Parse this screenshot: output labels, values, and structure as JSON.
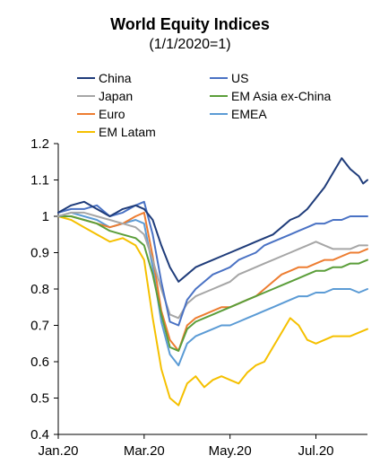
{
  "chart_data": {
    "type": "line",
    "title": "World Equity Indices",
    "subtitle": "(1/1/2020=1)",
    "xlabel": "",
    "ylabel": "",
    "x_tick_labels": [
      "Jan.20",
      "Mar.20",
      "May.20",
      "Jul.20"
    ],
    "x_tick_positions": [
      0,
      2,
      4,
      6
    ],
    "xlim": [
      0,
      7.2
    ],
    "ylim": [
      0.4,
      1.2
    ],
    "y_ticks": [
      0.4,
      0.5,
      0.6,
      0.7,
      0.8,
      0.9,
      1.0,
      1.1,
      1.2
    ],
    "y_tick_labels": [
      "0.4",
      "0.5",
      "0.6",
      "0.7",
      "0.8",
      "0.9",
      "1",
      "1.1",
      "1.2"
    ],
    "grid": false,
    "legend": "top-left, two columns",
    "series": [
      {
        "name": "China",
        "color": "#1f3c7a",
        "x": [
          0,
          0.3,
          0.6,
          0.9,
          1.2,
          1.5,
          1.8,
          2.0,
          2.2,
          2.4,
          2.6,
          2.8,
          3.0,
          3.2,
          3.4,
          3.6,
          3.8,
          4.0,
          4.2,
          4.4,
          4.6,
          4.8,
          5.0,
          5.2,
          5.4,
          5.6,
          5.8,
          6.0,
          6.2,
          6.4,
          6.6,
          6.8,
          7.0,
          7.1,
          7.2
        ],
        "y": [
          1.01,
          1.03,
          1.04,
          1.02,
          1.0,
          1.02,
          1.03,
          1.02,
          0.99,
          0.92,
          0.86,
          0.82,
          0.84,
          0.86,
          0.87,
          0.88,
          0.89,
          0.9,
          0.91,
          0.92,
          0.93,
          0.94,
          0.95,
          0.97,
          0.99,
          1.0,
          1.02,
          1.05,
          1.08,
          1.12,
          1.16,
          1.13,
          1.11,
          1.09,
          1.1
        ]
      },
      {
        "name": "US",
        "color": "#4a72c4",
        "x": [
          0,
          0.3,
          0.6,
          0.9,
          1.2,
          1.5,
          1.8,
          2.0,
          2.2,
          2.4,
          2.6,
          2.8,
          3.0,
          3.2,
          3.4,
          3.6,
          3.8,
          4.0,
          4.2,
          4.4,
          4.6,
          4.8,
          5.0,
          5.2,
          5.4,
          5.6,
          5.8,
          6.0,
          6.2,
          6.4,
          6.6,
          6.8,
          7.0,
          7.2
        ],
        "y": [
          1.01,
          1.02,
          1.02,
          1.03,
          1.0,
          1.01,
          1.03,
          1.04,
          0.95,
          0.82,
          0.71,
          0.7,
          0.77,
          0.8,
          0.82,
          0.84,
          0.85,
          0.86,
          0.88,
          0.89,
          0.9,
          0.92,
          0.93,
          0.94,
          0.95,
          0.96,
          0.97,
          0.98,
          0.98,
          0.99,
          0.99,
          1.0,
          1.0,
          1.0
        ]
      },
      {
        "name": "Japan",
        "color": "#a6a6a6",
        "x": [
          0,
          0.3,
          0.6,
          0.9,
          1.2,
          1.5,
          1.8,
          2.0,
          2.2,
          2.4,
          2.6,
          2.8,
          3.0,
          3.2,
          3.4,
          3.6,
          3.8,
          4.0,
          4.2,
          4.4,
          4.6,
          4.8,
          5.0,
          5.2,
          5.4,
          5.6,
          5.8,
          6.0,
          6.2,
          6.4,
          6.6,
          6.8,
          7.0,
          7.2
        ],
        "y": [
          1.0,
          1.01,
          1.01,
          1.0,
          0.99,
          0.98,
          0.97,
          0.95,
          0.88,
          0.8,
          0.73,
          0.72,
          0.76,
          0.78,
          0.79,
          0.8,
          0.81,
          0.82,
          0.84,
          0.85,
          0.86,
          0.87,
          0.88,
          0.89,
          0.9,
          0.91,
          0.92,
          0.93,
          0.92,
          0.91,
          0.91,
          0.91,
          0.92,
          0.92
        ]
      },
      {
        "name": "EM Asia ex-China",
        "color": "#5b9e3a",
        "x": [
          0,
          0.3,
          0.6,
          0.9,
          1.2,
          1.5,
          1.8,
          2.0,
          2.2,
          2.4,
          2.6,
          2.8,
          3.0,
          3.2,
          3.4,
          3.6,
          3.8,
          4.0,
          4.2,
          4.4,
          4.6,
          4.8,
          5.0,
          5.2,
          5.4,
          5.6,
          5.8,
          6.0,
          6.2,
          6.4,
          6.6,
          6.8,
          7.0,
          7.2
        ],
        "y": [
          1.0,
          1.0,
          0.99,
          0.98,
          0.96,
          0.95,
          0.94,
          0.92,
          0.84,
          0.73,
          0.64,
          0.63,
          0.69,
          0.71,
          0.72,
          0.73,
          0.74,
          0.75,
          0.76,
          0.77,
          0.78,
          0.79,
          0.8,
          0.81,
          0.82,
          0.83,
          0.84,
          0.85,
          0.85,
          0.86,
          0.86,
          0.87,
          0.87,
          0.88
        ]
      },
      {
        "name": "Euro",
        "color": "#ed7d31",
        "x": [
          0,
          0.3,
          0.6,
          0.9,
          1.2,
          1.5,
          1.8,
          2.0,
          2.2,
          2.4,
          2.6,
          2.8,
          3.0,
          3.2,
          3.4,
          3.6,
          3.8,
          4.0,
          4.2,
          4.4,
          4.6,
          4.8,
          5.0,
          5.2,
          5.4,
          5.6,
          5.8,
          6.0,
          6.2,
          6.4,
          6.6,
          6.8,
          7.0,
          7.2
        ],
        "y": [
          1.0,
          1.0,
          0.99,
          0.98,
          0.97,
          0.98,
          1.0,
          1.01,
          0.89,
          0.74,
          0.66,
          0.63,
          0.7,
          0.72,
          0.73,
          0.74,
          0.75,
          0.75,
          0.76,
          0.77,
          0.78,
          0.8,
          0.82,
          0.84,
          0.85,
          0.86,
          0.86,
          0.87,
          0.88,
          0.88,
          0.89,
          0.9,
          0.9,
          0.91
        ]
      },
      {
        "name": "EMEA",
        "color": "#5b9bd5",
        "x": [
          0,
          0.3,
          0.6,
          0.9,
          1.2,
          1.5,
          1.8,
          2.0,
          2.2,
          2.4,
          2.6,
          2.8,
          3.0,
          3.2,
          3.4,
          3.6,
          3.8,
          4.0,
          4.2,
          4.4,
          4.6,
          4.8,
          5.0,
          5.2,
          5.4,
          5.6,
          5.8,
          6.0,
          6.2,
          6.4,
          6.6,
          6.8,
          7.0,
          7.2
        ],
        "y": [
          1.0,
          1.01,
          1.0,
          0.99,
          0.97,
          0.98,
          0.99,
          0.98,
          0.86,
          0.71,
          0.62,
          0.59,
          0.65,
          0.67,
          0.68,
          0.69,
          0.7,
          0.7,
          0.71,
          0.72,
          0.73,
          0.74,
          0.75,
          0.76,
          0.77,
          0.78,
          0.78,
          0.79,
          0.79,
          0.8,
          0.8,
          0.8,
          0.79,
          0.8
        ]
      },
      {
        "name": "EM Latam",
        "color": "#f5c000",
        "x": [
          0,
          0.3,
          0.6,
          0.9,
          1.2,
          1.5,
          1.8,
          2.0,
          2.2,
          2.4,
          2.6,
          2.8,
          3.0,
          3.2,
          3.4,
          3.6,
          3.8,
          4.0,
          4.2,
          4.4,
          4.6,
          4.8,
          5.0,
          5.2,
          5.4,
          5.6,
          5.8,
          6.0,
          6.2,
          6.4,
          6.6,
          6.8,
          7.0,
          7.2
        ],
        "y": [
          1.0,
          0.99,
          0.97,
          0.95,
          0.93,
          0.94,
          0.92,
          0.88,
          0.72,
          0.58,
          0.5,
          0.48,
          0.54,
          0.56,
          0.53,
          0.55,
          0.56,
          0.55,
          0.54,
          0.57,
          0.59,
          0.6,
          0.64,
          0.68,
          0.72,
          0.7,
          0.66,
          0.65,
          0.66,
          0.67,
          0.67,
          0.67,
          0.68,
          0.69
        ]
      }
    ]
  }
}
